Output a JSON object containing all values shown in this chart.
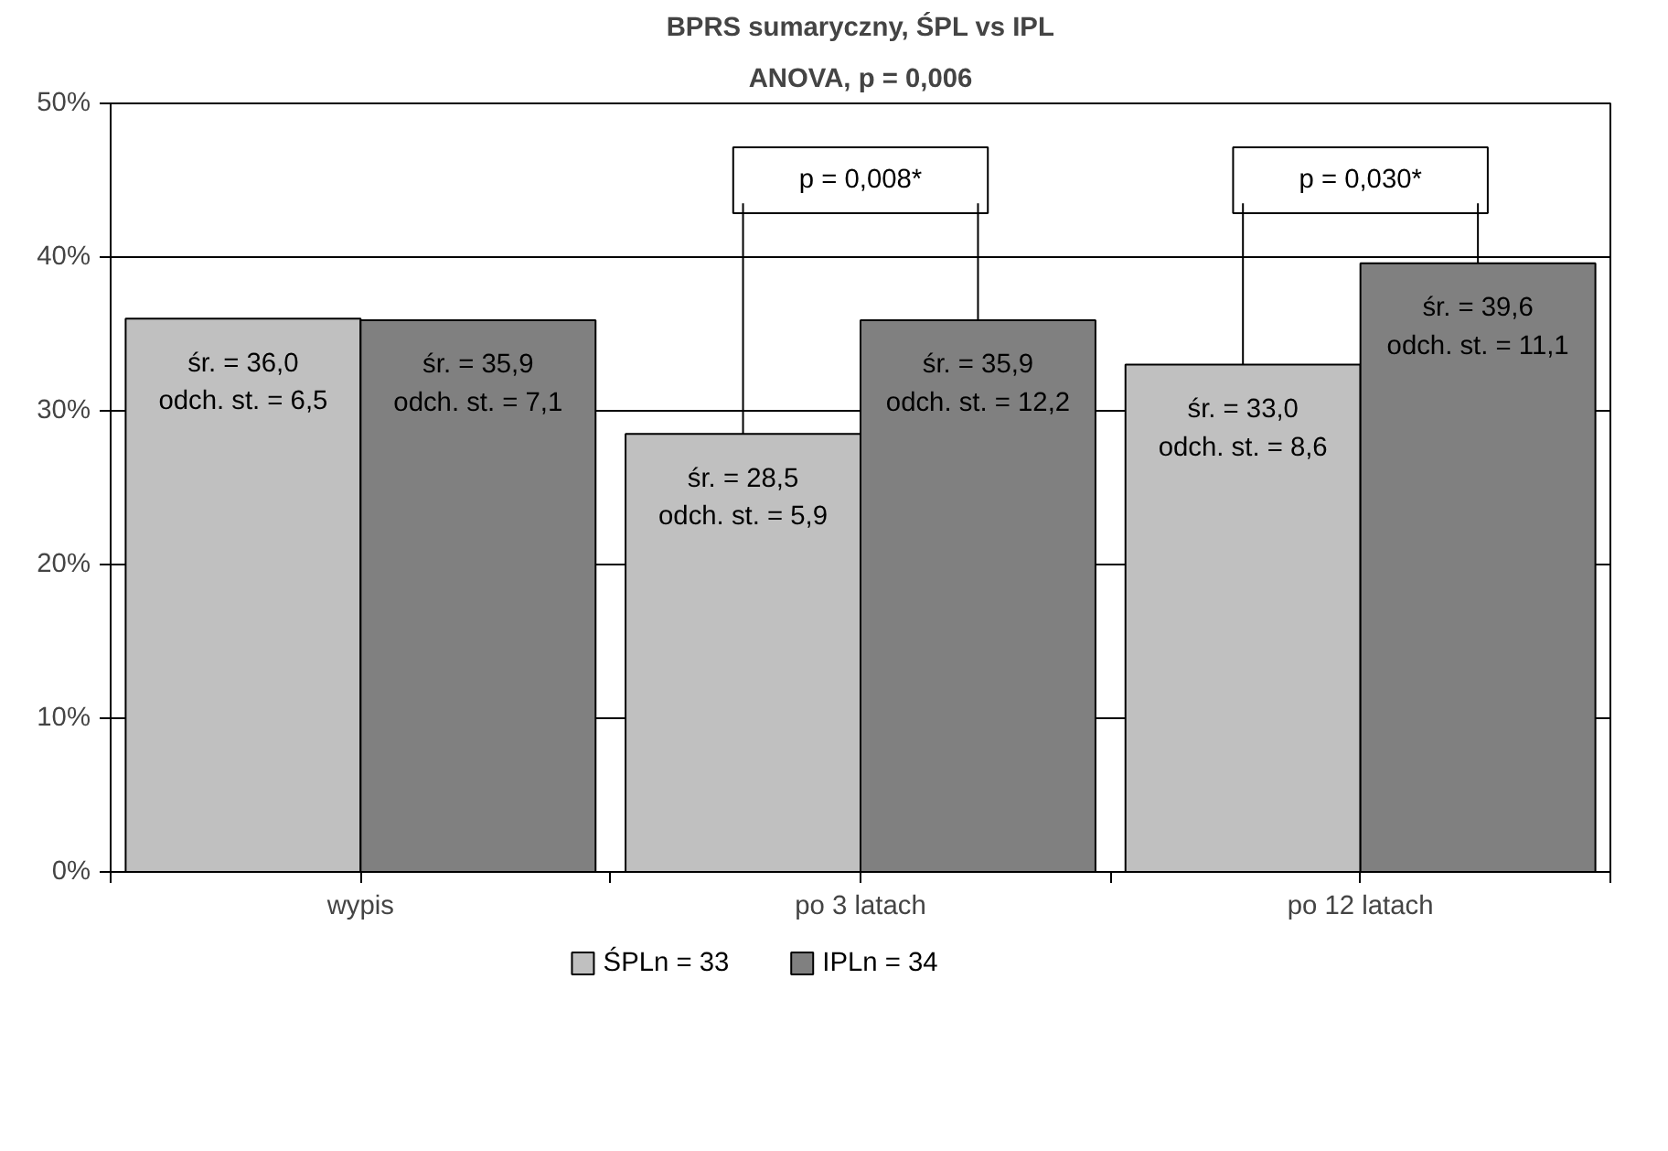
{
  "chart_data": {
    "type": "bar",
    "title": "BPRS sumaryczny, ŚPL vs IPL",
    "subtitle": "ANOVA, p = 0,006",
    "categories": [
      "wypis",
      "po 3 latach",
      "po 12 latach"
    ],
    "series": [
      {
        "name": "ŚPLn = 33",
        "color": "#c0c0c0",
        "values": [
          36.0,
          28.5,
          33.0
        ],
        "value_labels": [
          "śr. = 36,0\nodch. st. = 6,5",
          "śr. = 28,5\nodch. st. = 5,9",
          "śr. = 33,0\nodch. st. = 8,6"
        ]
      },
      {
        "name": "IPLn = 34",
        "color": "#808080",
        "values": [
          35.9,
          35.9,
          39.6
        ],
        "value_labels": [
          "śr. = 35,9\nodch. st. = 7,1",
          "śr. = 35,9\nodch. st. = 12,2",
          "śr. = 39,6\nodch. st. = 11,1"
        ]
      }
    ],
    "annotations": [
      "p = 0,008*",
      "p = 0,030*"
    ],
    "ylim": [
      0,
      50
    ],
    "yticks": [
      {
        "value": 0,
        "label": "0%"
      },
      {
        "value": 10,
        "label": "10%"
      },
      {
        "value": 20,
        "label": "20%"
      },
      {
        "value": 30,
        "label": "30%"
      },
      {
        "value": 40,
        "label": "40%"
      },
      {
        "value": 50,
        "label": "50%"
      }
    ],
    "grid": "y",
    "legend": "bottom"
  }
}
